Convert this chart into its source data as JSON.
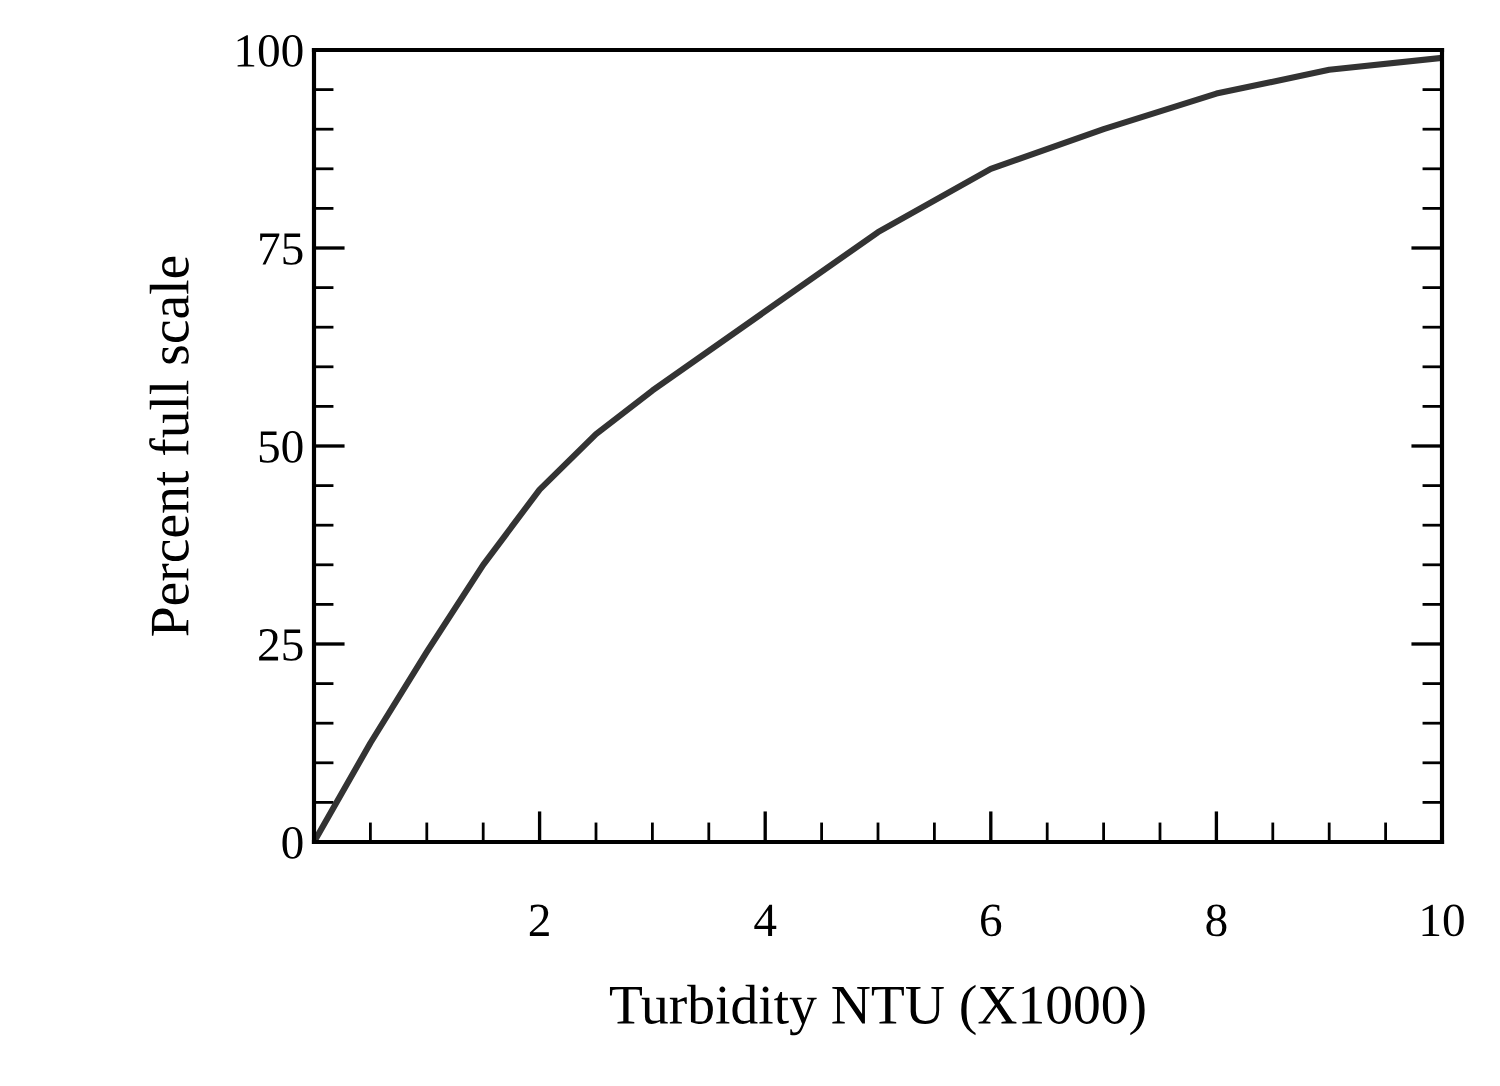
{
  "chart_data": {
    "type": "line",
    "xlabel": "Turbidity NTU (X1000)",
    "ylabel": "Percent full scale",
    "x": [
      0,
      0.5,
      1,
      1.5,
      2,
      2.5,
      3,
      4,
      5,
      6,
      7,
      8,
      9,
      10
    ],
    "series": [
      {
        "color": "#333333",
        "values": [
          0,
          12.5,
          24,
          35,
          44.5,
          51.5,
          57,
          67,
          77,
          85,
          90,
          94.5,
          97.5,
          99
        ]
      }
    ],
    "xlim": [
      0,
      10
    ],
    "ylim": [
      0,
      100
    ],
    "xticks": [
      {
        "value": 0,
        "label": null
      },
      2,
      4,
      6,
      8,
      10
    ],
    "yticks": [
      0,
      25,
      50,
      75,
      100
    ],
    "grid": false,
    "legend": false,
    "marker": "none",
    "line_style": "solid"
  }
}
